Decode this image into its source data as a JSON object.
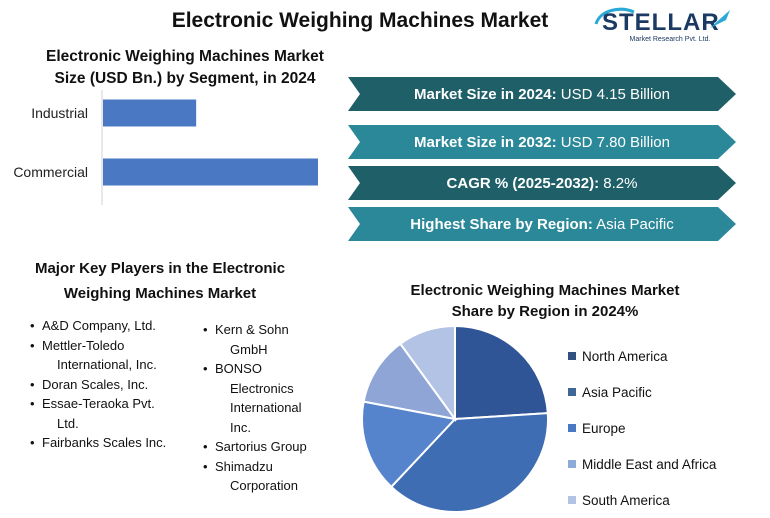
{
  "header": {
    "title": "Electronic Weighing Machines Market",
    "logo_text": "STELLAR",
    "logo_sub": "Market Research Pvt. Ltd."
  },
  "bar_section": {
    "title_line1": "Electronic Weighing Machines Market",
    "title_line2": "Size (USD Bn.) by Segment, in 2024"
  },
  "info_banners": [
    {
      "label": "Market Size in 2024:",
      "value": "USD 4.15 Billion",
      "color": "#1f5f68"
    },
    {
      "label": "Market Size in 2032:",
      "value": "USD 7.80 Billion",
      "color": "#2b8898"
    },
    {
      "label": "CAGR % (2025-2032):",
      "value": "8.2%",
      "color": "#1f5f68"
    },
    {
      "label": "Highest Share by Region:",
      "value": "Asia Pacific",
      "color": "#2b8898"
    }
  ],
  "players_section": {
    "title_line1": "Major Key Players in the Electronic",
    "title_line2": "Weighing Machines Market",
    "column1": [
      [
        "A&D Company, Ltd."
      ],
      [
        "Mettler-Toledo",
        "International, Inc."
      ],
      [
        "Doran Scales, Inc."
      ],
      [
        "Essae-Teraoka Pvt.",
        "Ltd."
      ],
      [
        "Fairbanks Scales Inc."
      ]
    ],
    "column2": [
      [
        "Kern & Sohn",
        "GmbH"
      ],
      [
        "BONSO",
        "Electronics",
        "International",
        "Inc."
      ],
      [
        "Sartorius Group"
      ],
      [
        "Shimadzu",
        "Corporation"
      ]
    ]
  },
  "pie_section": {
    "title_line1": "Electronic Weighing Machines Market",
    "title_line2": "Share by Region in 2024%"
  },
  "chart_data": [
    {
      "type": "bar",
      "orientation": "horizontal",
      "categories": [
        "Industrial",
        "Commercial"
      ],
      "values": [
        1.3,
        3.0
      ],
      "title": "Electronic Weighing Machines Market Size (USD Bn.) by Segment, in 2024",
      "color": "#4a78c2"
    },
    {
      "type": "pie",
      "title": "Electronic Weighing Machines Market Share by Region in 2024%",
      "categories": [
        "North America",
        "Asia Pacific",
        "Europe",
        "Middle East and Africa",
        "South America"
      ],
      "values": [
        24,
        38,
        16,
        12,
        10
      ],
      "colors": [
        "#2f5596",
        "#3e6db3",
        "#5584cc",
        "#8ea5d6",
        "#b3c3e6"
      ],
      "legend_colors": [
        "#31527e",
        "#3c6797",
        "#4a78c2",
        "#8eaad6",
        "#b3c3e6"
      ],
      "legend_position": "right"
    }
  ]
}
